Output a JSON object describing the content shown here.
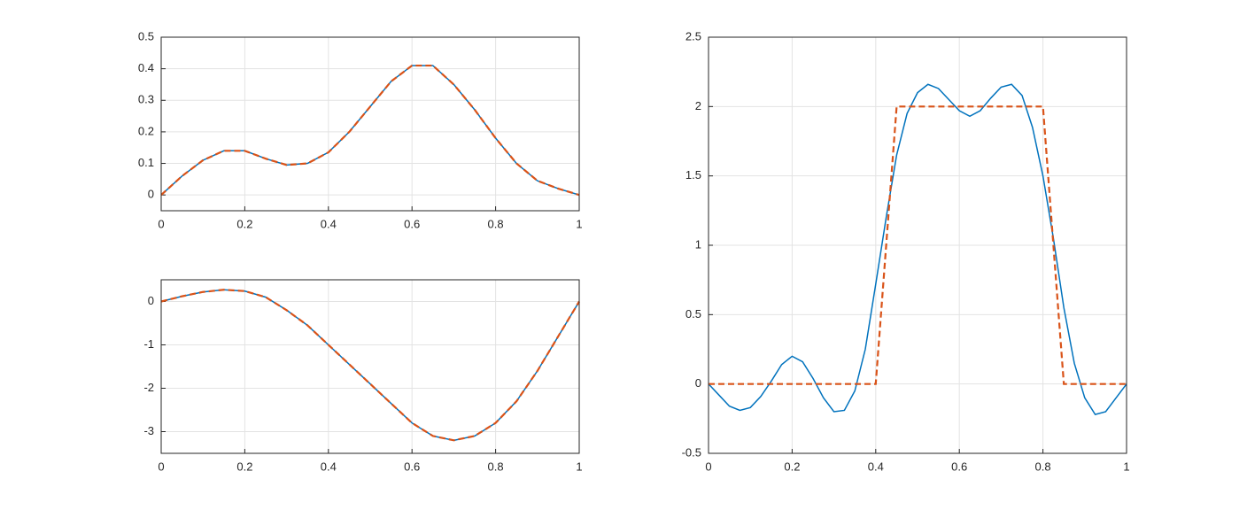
{
  "chart_data": [
    {
      "type": "line",
      "grid": true,
      "x": [
        0,
        0.05,
        0.1,
        0.15,
        0.2,
        0.25,
        0.3,
        0.35,
        0.4,
        0.45,
        0.5,
        0.55,
        0.6,
        0.65,
        0.7,
        0.75,
        0.8,
        0.85,
        0.9,
        0.95,
        1
      ],
      "xlim": [
        0,
        1
      ],
      "xticks": [
        0,
        0.2,
        0.4,
        0.6,
        0.8,
        1
      ],
      "ylim": [
        -0.05,
        0.5
      ],
      "yticks": [
        0,
        0.1,
        0.2,
        0.3,
        0.4,
        0.5
      ],
      "series": [
        {
          "color": "#0072bd",
          "style": "solid",
          "values": [
            0,
            0.06,
            0.11,
            0.14,
            0.14,
            0.115,
            0.095,
            0.1,
            0.135,
            0.2,
            0.28,
            0.36,
            0.41,
            0.41,
            0.35,
            0.27,
            0.18,
            0.1,
            0.045,
            0.02,
            0
          ]
        },
        {
          "color": "#d95319",
          "style": "dashed",
          "values": [
            0,
            0.06,
            0.11,
            0.14,
            0.14,
            0.115,
            0.095,
            0.1,
            0.135,
            0.2,
            0.28,
            0.36,
            0.41,
            0.41,
            0.35,
            0.27,
            0.18,
            0.1,
            0.045,
            0.02,
            0
          ]
        }
      ]
    },
    {
      "type": "line",
      "grid": true,
      "x": [
        0,
        0.05,
        0.1,
        0.15,
        0.2,
        0.25,
        0.3,
        0.35,
        0.4,
        0.45,
        0.5,
        0.55,
        0.6,
        0.65,
        0.7,
        0.75,
        0.8,
        0.85,
        0.9,
        0.95,
        1
      ],
      "xlim": [
        0,
        1
      ],
      "xticks": [
        0,
        0.2,
        0.4,
        0.6,
        0.8,
        1
      ],
      "ylim": [
        -3.5,
        0.5
      ],
      "yticks": [
        -3,
        -2,
        -1,
        0
      ],
      "series": [
        {
          "color": "#0072bd",
          "style": "solid",
          "values": [
            0,
            0.12,
            0.22,
            0.27,
            0.24,
            0.1,
            -0.2,
            -0.55,
            -1.0,
            -1.45,
            -1.9,
            -2.35,
            -2.8,
            -3.1,
            -3.2,
            -3.1,
            -2.8,
            -2.3,
            -1.6,
            -0.8,
            0
          ]
        },
        {
          "color": "#d95319",
          "style": "dashed",
          "values": [
            0,
            0.12,
            0.22,
            0.27,
            0.24,
            0.1,
            -0.2,
            -0.55,
            -1.0,
            -1.45,
            -1.9,
            -2.35,
            -2.8,
            -3.1,
            -3.2,
            -3.1,
            -2.8,
            -2.3,
            -1.6,
            -0.8,
            0
          ]
        }
      ]
    },
    {
      "type": "line",
      "grid": true,
      "x": [
        0,
        0.025,
        0.05,
        0.075,
        0.1,
        0.125,
        0.15,
        0.175,
        0.2,
        0.225,
        0.25,
        0.275,
        0.3,
        0.325,
        0.35,
        0.375,
        0.4,
        0.425,
        0.45,
        0.475,
        0.5,
        0.525,
        0.55,
        0.575,
        0.6,
        0.625,
        0.65,
        0.675,
        0.7,
        0.725,
        0.75,
        0.775,
        0.8,
        0.825,
        0.85,
        0.875,
        0.9,
        0.925,
        0.95,
        0.975,
        1
      ],
      "xlim": [
        0,
        1
      ],
      "xticks": [
        0,
        0.2,
        0.4,
        0.6,
        0.8,
        1
      ],
      "ylim": [
        -0.5,
        2.5
      ],
      "yticks": [
        -0.5,
        0,
        0.5,
        1,
        1.5,
        2,
        2.5
      ],
      "series": [
        {
          "color": "#0072bd",
          "style": "solid",
          "values": [
            0,
            -0.08,
            -0.16,
            -0.19,
            -0.17,
            -0.09,
            0.02,
            0.14,
            0.2,
            0.16,
            0.04,
            -0.1,
            -0.2,
            -0.19,
            -0.05,
            0.25,
            0.72,
            1.2,
            1.65,
            1.95,
            2.1,
            2.16,
            2.13,
            2.05,
            1.97,
            1.93,
            1.97,
            2.06,
            2.14,
            2.16,
            2.08,
            1.85,
            1.5,
            1.05,
            0.55,
            0.15,
            -0.1,
            -0.22,
            -0.2,
            -0.1,
            0
          ]
        },
        {
          "color": "#d95319",
          "style": "dashed",
          "values": [
            0,
            0,
            0,
            0,
            0,
            0,
            0,
            0,
            0,
            0,
            0,
            0,
            0,
            0,
            0,
            0,
            0,
            1,
            2,
            2,
            2,
            2,
            2,
            2,
            2,
            2,
            2,
            2,
            2,
            2,
            2,
            2,
            2,
            1,
            0,
            0,
            0,
            0,
            0,
            0,
            0
          ]
        }
      ]
    }
  ]
}
